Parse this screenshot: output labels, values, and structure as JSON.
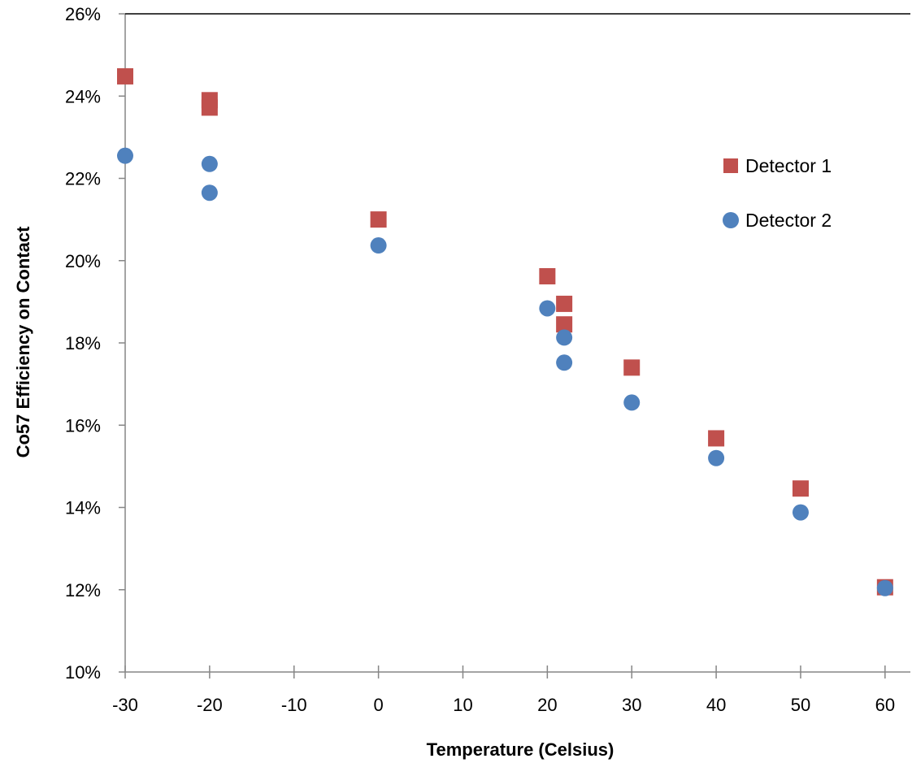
{
  "chart_data": {
    "type": "scatter",
    "title": "",
    "xlabel": "Temperature (Celsius)",
    "ylabel": "Co57 Efficiency on Contact",
    "xlim": [
      -30,
      63
    ],
    "ylim": [
      10,
      26
    ],
    "x_ticks": [
      -30,
      -20,
      -10,
      0,
      10,
      20,
      30,
      40,
      50,
      60
    ],
    "y_ticks": [
      10,
      12,
      14,
      16,
      18,
      20,
      22,
      24,
      26
    ],
    "x_tick_labels": [
      "-30",
      "-20",
      "-10",
      "0",
      "10",
      "20",
      "30",
      "40",
      "50",
      "60"
    ],
    "y_tick_labels": [
      "10%",
      "12%",
      "14%",
      "16%",
      "18%",
      "20%",
      "22%",
      "24%",
      "26%"
    ],
    "grid": false,
    "legend_position": "right",
    "series": [
      {
        "name": "Detector 1",
        "marker": "square",
        "color": "#c0504d",
        "points": [
          {
            "x": -30,
            "y": 24.48
          },
          {
            "x": -20,
            "y": 23.9
          },
          {
            "x": -20,
            "y": 23.72
          },
          {
            "x": 0,
            "y": 21.0
          },
          {
            "x": 20,
            "y": 19.62
          },
          {
            "x": 22,
            "y": 18.95
          },
          {
            "x": 22,
            "y": 18.45
          },
          {
            "x": 30,
            "y": 17.4
          },
          {
            "x": 40,
            "y": 15.68
          },
          {
            "x": 50,
            "y": 14.46
          },
          {
            "x": 60,
            "y": 12.06
          }
        ]
      },
      {
        "name": "Detector 2",
        "marker": "circle",
        "color": "#4f81bd",
        "points": [
          {
            "x": -30,
            "y": 22.55
          },
          {
            "x": -20,
            "y": 22.35
          },
          {
            "x": -20,
            "y": 21.65
          },
          {
            "x": 0,
            "y": 20.37
          },
          {
            "x": 20,
            "y": 18.84
          },
          {
            "x": 22,
            "y": 18.13
          },
          {
            "x": 22,
            "y": 17.52
          },
          {
            "x": 30,
            "y": 16.55
          },
          {
            "x": 40,
            "y": 15.2
          },
          {
            "x": 50,
            "y": 13.88
          },
          {
            "x": 60,
            "y": 12.04
          }
        ]
      }
    ]
  }
}
